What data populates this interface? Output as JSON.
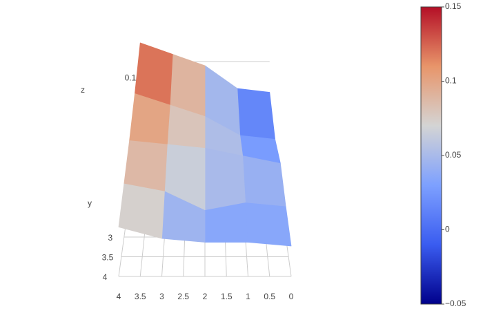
{
  "chart_data": {
    "type": "surface",
    "x": [
      0,
      1,
      2,
      3,
      4
    ],
    "y": [
      0,
      1,
      2,
      3,
      4
    ],
    "z": [
      [
        0.02,
        0.03,
        0.09,
        0.12,
        0.15
      ],
      [
        0.0,
        0.01,
        0.06,
        0.09,
        0.12
      ],
      [
        0.04,
        0.06,
        0.08,
        0.09,
        0.1
      ],
      [
        0.03,
        0.04,
        0.02,
        0.07,
        0.09
      ],
      [
        0.03,
        0.04,
        0.04,
        0.05,
        0.08
      ]
    ],
    "colorscale": [
      "#00008b",
      "#3a5cf0",
      "#7da0ff",
      "#d4d4d4",
      "#e8956a",
      "#b40f26"
    ],
    "clim": [
      -0.05,
      0.15
    ],
    "colorbar_ticks": [
      {
        "value": -0.05,
        "label": "−0.05"
      },
      0,
      0.05,
      0.1,
      0.15
    ],
    "xticks": [
      4,
      3.5,
      3,
      2.5,
      2,
      1.5,
      1,
      0.5,
      0
    ],
    "yticks": [
      3,
      3.5,
      4
    ],
    "zticks": [
      0.1
    ],
    "y_title": "y",
    "z_title": "z"
  }
}
